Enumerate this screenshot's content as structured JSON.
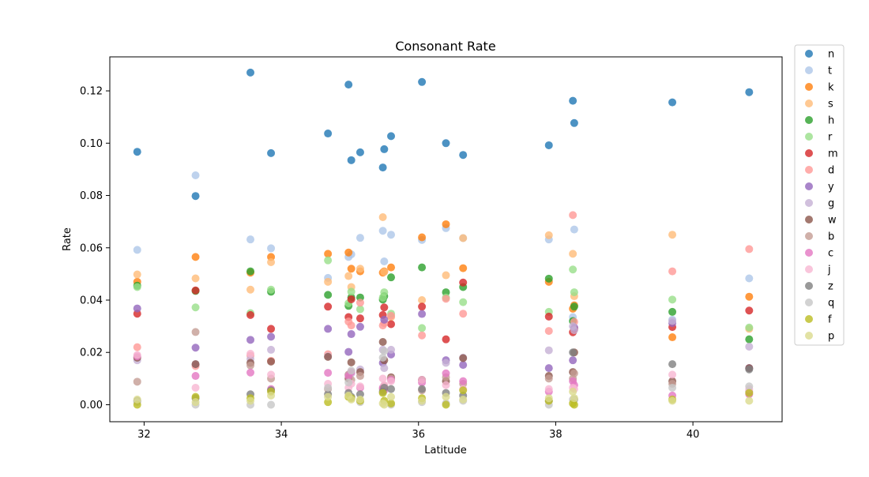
{
  "chart_data": {
    "type": "scatter",
    "title": "Consonant Rate",
    "xlabel": "Latitude",
    "ylabel": "Rate",
    "xlim": [
      31.5,
      41.3
    ],
    "ylim": [
      -0.0065,
      0.133
    ],
    "xticks": [
      32,
      34,
      36,
      38,
      40
    ],
    "yticks": [
      0.0,
      0.02,
      0.04,
      0.06,
      0.08,
      0.1,
      0.12
    ],
    "ytick_labels": [
      "0.00",
      "0.02",
      "0.04",
      "0.06",
      "0.08",
      "0.10",
      "0.12"
    ],
    "grid": false,
    "legend_position": "outside-right",
    "x": [
      31.9,
      32.75,
      33.55,
      33.85,
      34.68,
      34.98,
      35.02,
      35.15,
      35.48,
      35.5,
      35.6,
      36.05,
      36.4,
      36.65,
      37.9,
      38.25,
      38.27,
      39.7,
      40.82
    ],
    "series": [
      {
        "name": "n",
        "color": "#1f77b4",
        "values": [
          0.0967,
          0.0798,
          0.127,
          0.0962,
          0.1037,
          0.1224,
          0.0935,
          0.0965,
          0.0907,
          0.0977,
          0.1027,
          0.1234,
          0.1,
          0.0955,
          0.0992,
          0.1162,
          0.1077,
          0.1156,
          0.1195
        ]
      },
      {
        "name": "t",
        "color": "#aec7e8",
        "values": [
          0.0592,
          0.0877,
          0.0632,
          0.0598,
          0.0485,
          0.0565,
          0.0575,
          0.0638,
          0.0665,
          0.0548,
          0.065,
          0.063,
          0.0675,
          0.0637,
          0.0632,
          0.0335,
          0.067,
          0.0325,
          0.0483
        ]
      },
      {
        "name": "k",
        "color": "#ff7f0e",
        "values": [
          0.047,
          0.0565,
          0.0505,
          0.0565,
          0.0577,
          0.0582,
          0.052,
          0.051,
          0.0505,
          0.051,
          0.0525,
          0.064,
          0.069,
          0.0522,
          0.047,
          0.0367,
          0.038,
          0.0258,
          0.0413
        ]
      },
      {
        "name": "s",
        "color": "#ffbb78",
        "values": [
          0.0498,
          0.0483,
          0.044,
          0.0545,
          0.047,
          0.0492,
          0.045,
          0.052,
          0.0717,
          0.0508,
          0.0335,
          0.04,
          0.0495,
          0.0637,
          0.0648,
          0.0577,
          0.0415,
          0.065,
          0.029
        ]
      },
      {
        "name": "h",
        "color": "#2ca02c",
        "values": [
          0.0455,
          0.0435,
          0.051,
          0.0432,
          0.042,
          0.0378,
          0.041,
          0.041,
          0.0402,
          0.0415,
          0.0487,
          0.0525,
          0.043,
          0.045,
          0.0482,
          0.032,
          0.0375,
          0.0355,
          0.025
        ]
      },
      {
        "name": "r",
        "color": "#98df8a",
        "values": [
          0.045,
          0.0372,
          0.035,
          0.044,
          0.0552,
          0.0388,
          0.0432,
          0.0365,
          0.041,
          0.043,
          0.0348,
          0.0293,
          0.041,
          0.0392,
          0.0355,
          0.0517,
          0.043,
          0.0402,
          0.0295
        ]
      },
      {
        "name": "m",
        "color": "#d62728",
        "values": [
          0.0348,
          0.0437,
          0.0343,
          0.029,
          0.0375,
          0.0335,
          0.0403,
          0.033,
          0.0343,
          0.0372,
          0.0308,
          0.0375,
          0.025,
          0.0467,
          0.0337,
          0.0277,
          0.029,
          0.0297,
          0.036
        ]
      },
      {
        "name": "d",
        "color": "#ff9896",
        "values": [
          0.022,
          0.0148,
          0.0188,
          0.0168,
          0.0193,
          0.0318,
          0.0303,
          0.039,
          0.0303,
          0.0312,
          0.034,
          0.0265,
          0.0405,
          0.0348,
          0.0282,
          0.0725,
          0.0317,
          0.051,
          0.0595
        ]
      },
      {
        "name": "y",
        "color": "#9467bd",
        "values": [
          0.0368,
          0.0218,
          0.0248,
          0.026,
          0.029,
          0.0202,
          0.027,
          0.0298,
          0.016,
          0.0325,
          0.0192,
          0.0347,
          0.017,
          0.0152,
          0.014,
          0.017,
          0.0295,
          0.0312,
          0.014
        ]
      },
      {
        "name": "g",
        "color": "#c5b0d5",
        "values": [
          0.017,
          0.0155,
          0.0175,
          0.021,
          0.0185,
          0.0115,
          0.012,
          0.0135,
          0.021,
          0.014,
          0.021,
          0.0095,
          0.016,
          0.018,
          0.0208,
          0.03,
          0.0285,
          0.032,
          0.0222
        ]
      },
      {
        "name": "w",
        "color": "#8c564b",
        "values": [
          0.018,
          0.0155,
          0.016,
          0.0165,
          0.0183,
          0.01,
          0.0162,
          0.0125,
          0.024,
          0.017,
          0.0105,
          0.0095,
          0.009,
          0.0178,
          0.011,
          0.0125,
          0.02,
          0.009,
          0.014
        ]
      },
      {
        "name": "b",
        "color": "#c49c94",
        "values": [
          0.0088,
          0.0278,
          0.015,
          0.01,
          0.006,
          0.0115,
          0.0095,
          0.011,
          0.006,
          0.0072,
          0.01,
          0.0055,
          0.0105,
          0.008,
          0.01,
          0.01,
          0.012,
          0.008,
          0.005
        ]
      },
      {
        "name": "c",
        "color": "#e377c2",
        "values": [
          0.0185,
          0.011,
          0.0123,
          0.006,
          0.0122,
          0.011,
          0.0125,
          0.0065,
          0.0065,
          0.0055,
          0.0095,
          0.0085,
          0.012,
          0.009,
          0.005,
          0.009,
          0.0075,
          0.0035,
          0.004
        ]
      },
      {
        "name": "j",
        "color": "#f7b6d2",
        "values": [
          0.019,
          0.0065,
          0.0195,
          0.0115,
          0.008,
          0.0065,
          0.008,
          0.007,
          0.01,
          0.0075,
          0.009,
          0.0095,
          0.0075,
          0.006,
          0.006,
          0.0065,
          0.006,
          0.0115,
          0.006
        ]
      },
      {
        "name": "z",
        "color": "#7f7f7f",
        "values": [
          0.0015,
          0.0025,
          0.004,
          0.0055,
          0.004,
          0.0045,
          0.003,
          0.004,
          0.005,
          0.0065,
          0.006,
          0.006,
          0.0045,
          0.0035,
          0.0015,
          0.02,
          0.002,
          0.0155,
          0.0135
        ]
      },
      {
        "name": "q",
        "color": "#c7c7c7",
        "values": [
          0.001,
          0.0,
          0.0,
          0.0,
          0.0065,
          0.0085,
          0.013,
          0.001,
          0.018,
          0.0205,
          0.0,
          0.001,
          0.0005,
          0.0015,
          0.0,
          0.002,
          0.002,
          0.0065,
          0.007
        ]
      },
      {
        "name": "f",
        "color": "#bcbd22",
        "values": [
          0.0,
          0.003,
          0.0025,
          0.005,
          0.001,
          0.003,
          0.0025,
          0.0015,
          0.0045,
          0.0015,
          0.0005,
          0.0025,
          0.0,
          0.0055,
          0.0015,
          0.0005,
          0.0,
          0.002,
          0.0045
        ]
      },
      {
        "name": "p",
        "color": "#dbdb8d",
        "values": [
          0.002,
          0.001,
          0.0015,
          0.0035,
          0.003,
          0.0035,
          0.002,
          0.002,
          0.0005,
          0.0,
          0.003,
          0.0015,
          0.003,
          0.002,
          0.0025,
          0.005,
          0.0025,
          0.0015,
          0.0015
        ]
      }
    ]
  }
}
